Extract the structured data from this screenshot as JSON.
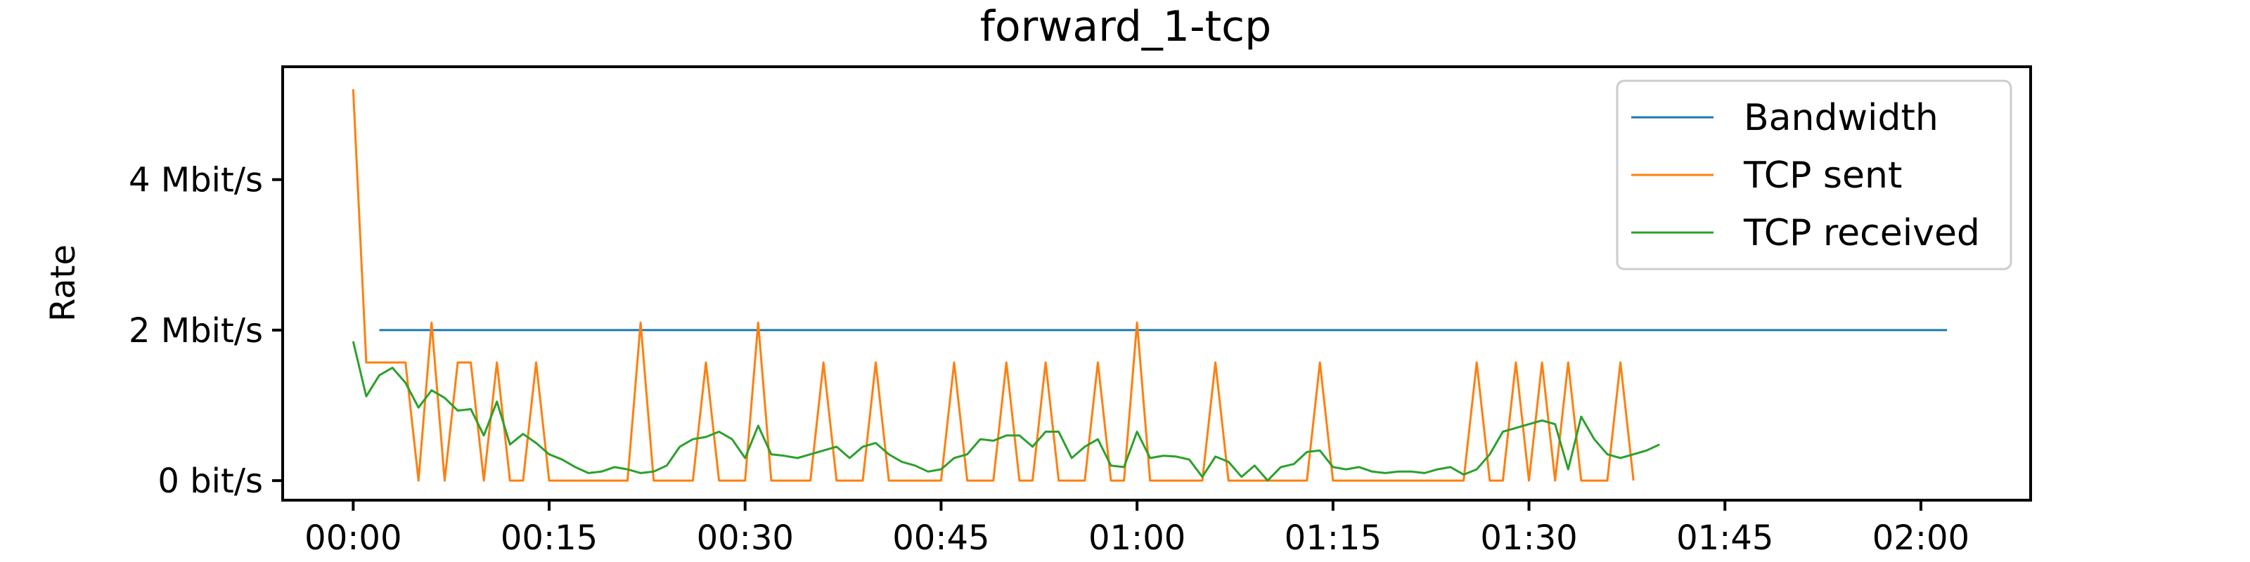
{
  "chart_data": {
    "type": "line",
    "title": "forward_1-tcp",
    "xlabel": "",
    "ylabel": "Rate",
    "x_unit": "seconds",
    "xlim": [
      -5.4,
      128.4
    ],
    "ylim": [
      -0.26,
      5.5
    ],
    "x_ticks": [
      {
        "value": 0,
        "label": "00:00"
      },
      {
        "value": 15,
        "label": "00:15"
      },
      {
        "value": 30,
        "label": "00:30"
      },
      {
        "value": 45,
        "label": "00:45"
      },
      {
        "value": 60,
        "label": "01:00"
      },
      {
        "value": 75,
        "label": "01:15"
      },
      {
        "value": 90,
        "label": "01:30"
      },
      {
        "value": 105,
        "label": "01:45"
      },
      {
        "value": 120,
        "label": "02:00"
      }
    ],
    "y_ticks": [
      {
        "value": 0,
        "label": "0 bit/s"
      },
      {
        "value": 2,
        "label": "2 Mbit/s"
      },
      {
        "value": 4,
        "label": "4 Mbit/s"
      }
    ],
    "grid": false,
    "legend": "top-right",
    "series": [
      {
        "name": "Bandwidth",
        "color": "#1f77b4",
        "x": [
          2,
          122
        ],
        "y": [
          2.0,
          2.0
        ]
      },
      {
        "name": "TCP sent",
        "color": "#ff7f0e",
        "x": [
          0,
          1,
          2,
          3,
          4,
          5,
          6,
          7,
          8,
          9,
          10,
          11,
          12,
          13,
          14,
          15,
          16,
          17,
          18,
          19,
          20,
          21,
          22,
          23,
          24,
          25,
          26,
          27,
          28,
          29,
          30,
          31,
          32,
          33,
          34,
          35,
          36,
          37,
          38,
          39,
          40,
          41,
          42,
          43,
          44,
          45,
          46,
          47,
          48,
          49,
          50,
          51,
          52,
          53,
          54,
          55,
          56,
          57,
          58,
          59,
          60,
          61,
          62,
          63,
          64,
          65,
          66,
          67,
          68,
          69,
          70,
          71,
          72,
          73,
          74,
          75,
          76,
          77,
          78,
          79,
          80,
          81,
          82,
          83,
          84,
          85,
          86,
          87,
          88,
          89,
          90,
          91,
          92,
          93,
          94,
          95,
          96,
          97,
          98
        ],
        "y": [
          5.2,
          1.57,
          1.57,
          1.57,
          1.57,
          0.0,
          2.1,
          0.0,
          1.57,
          1.57,
          0.0,
          1.57,
          0.0,
          0.0,
          1.57,
          0.0,
          0.0,
          0.0,
          0.0,
          0.0,
          0.0,
          0.0,
          2.1,
          0.0,
          0.0,
          0.0,
          0.0,
          1.57,
          0.0,
          0.0,
          0.0,
          2.1,
          0.0,
          0.0,
          0.0,
          0.0,
          1.57,
          0.0,
          0.0,
          0.0,
          1.57,
          0.0,
          0.0,
          0.0,
          0.0,
          0.0,
          1.57,
          0.0,
          0.0,
          0.0,
          1.57,
          0.0,
          0.0,
          1.57,
          0.0,
          0.0,
          0.0,
          1.57,
          0.0,
          0.0,
          2.1,
          0.0,
          0.0,
          0.0,
          0.0,
          0.0,
          1.57,
          0.0,
          0.0,
          0.0,
          0.0,
          0.0,
          0.0,
          0.0,
          1.57,
          0.0,
          0.0,
          0.0,
          0.0,
          0.0,
          0.0,
          0.0,
          0.0,
          0.0,
          0.0,
          0.0,
          1.57,
          0.0,
          0.0,
          1.57,
          0.0,
          1.57,
          0.0,
          1.57,
          0.0,
          0.0,
          0.0,
          1.57,
          0.0
        ]
      },
      {
        "name": "TCP received",
        "color": "#2ca02c",
        "x": [
          0,
          1,
          2,
          3,
          4,
          5,
          6,
          7,
          8,
          9,
          10,
          11,
          12,
          13,
          14,
          15,
          16,
          17,
          18,
          19,
          20,
          21,
          22,
          23,
          24,
          25,
          26,
          27,
          28,
          29,
          30,
          31,
          32,
          33,
          34,
          35,
          36,
          37,
          38,
          39,
          40,
          41,
          42,
          43,
          44,
          45,
          46,
          47,
          48,
          49,
          50,
          51,
          52,
          53,
          54,
          55,
          56,
          57,
          58,
          59,
          60,
          61,
          62,
          63,
          64,
          65,
          66,
          67,
          68,
          69,
          70,
          71,
          72,
          73,
          74,
          75,
          76,
          77,
          78,
          79,
          80,
          81,
          82,
          83,
          84,
          85,
          86,
          87,
          88,
          89,
          90,
          91,
          92,
          93,
          94,
          95,
          96,
          97,
          98,
          99,
          100
        ],
        "y": [
          1.85,
          1.12,
          1.4,
          1.5,
          1.3,
          0.97,
          1.2,
          1.1,
          0.93,
          0.95,
          0.6,
          1.05,
          0.48,
          0.62,
          0.5,
          0.35,
          0.28,
          0.18,
          0.1,
          0.12,
          0.18,
          0.15,
          0.1,
          0.12,
          0.2,
          0.45,
          0.55,
          0.58,
          0.65,
          0.55,
          0.3,
          0.73,
          0.35,
          0.33,
          0.3,
          0.35,
          0.4,
          0.45,
          0.3,
          0.45,
          0.5,
          0.35,
          0.25,
          0.2,
          0.12,
          0.15,
          0.3,
          0.35,
          0.55,
          0.53,
          0.6,
          0.6,
          0.45,
          0.65,
          0.65,
          0.3,
          0.45,
          0.55,
          0.2,
          0.18,
          0.65,
          0.3,
          0.33,
          0.32,
          0.28,
          0.05,
          0.32,
          0.25,
          0.05,
          0.2,
          0.0,
          0.18,
          0.22,
          0.38,
          0.4,
          0.18,
          0.15,
          0.18,
          0.12,
          0.1,
          0.12,
          0.12,
          0.1,
          0.15,
          0.18,
          0.08,
          0.15,
          0.35,
          0.65,
          0.7,
          0.75,
          0.8,
          0.75,
          0.15,
          0.85,
          0.55,
          0.35,
          0.3,
          0.35,
          0.4,
          0.48
        ]
      }
    ]
  }
}
